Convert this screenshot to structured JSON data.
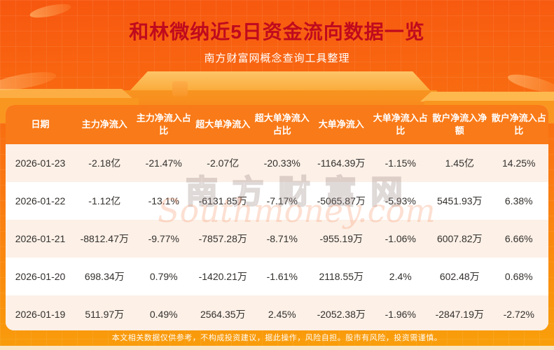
{
  "page": {
    "title": "和林微纳近5日资金流向数据一览",
    "subtitle": "南方财富网概念查询工具整理",
    "footer": "本文相关数据仅供参考，不构成投资建议，据此操作，风险自担。股市有风险，投资需谨慎。",
    "watermark_cn": "南方财富网",
    "watermark_en": "Southmoney.com"
  },
  "colors": {
    "background_top": "#f7570f",
    "background_bottom": "#f9a00a",
    "title_red": "#c00a1e",
    "table_header_bg": "#f97a18",
    "row_alt_peach": "#fcf0e7",
    "row_white": "#ffffff",
    "cell_text": "#33302d"
  },
  "table": {
    "columns": [
      "日期",
      "主力净流入",
      "主力净流入占比",
      "超大单净流入",
      "超大单净流入占比",
      "大单净流入",
      "大单净流入占比",
      "散户净流入净额",
      "散户净流入占比"
    ],
    "rows": [
      [
        "2026-01-23",
        "-2.18亿",
        "-21.47%",
        "-2.07亿",
        "-20.33%",
        "-1164.39万",
        "-1.15%",
        "1.45亿",
        "14.25%"
      ],
      [
        "2026-01-22",
        "-1.12亿",
        "-13.1%",
        "-6131.85万",
        "-7.17%",
        "-5065.87万",
        "-5.93%",
        "5451.93万",
        "6.38%"
      ],
      [
        "2026-01-21",
        "-8812.47万",
        "-9.77%",
        "-7857.28万",
        "-8.71%",
        "-955.19万",
        "-1.06%",
        "6007.82万",
        "6.66%"
      ],
      [
        "2026-01-20",
        "698.34万",
        "0.79%",
        "-1420.21万",
        "-1.61%",
        "2118.55万",
        "2.4%",
        "602.48万",
        "0.68%"
      ],
      [
        "2026-01-19",
        "511.97万",
        "0.49%",
        "2564.35万",
        "2.45%",
        "-2052.38万",
        "-1.96%",
        "-2847.19万",
        "-2.72%"
      ]
    ]
  }
}
